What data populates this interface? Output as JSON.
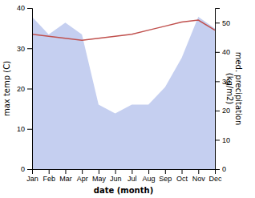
{
  "chart_data": {
    "type": "line",
    "categories": [
      "Jan",
      "Feb",
      "Mar",
      "Apr",
      "May",
      "Jun",
      "Jul",
      "Aug",
      "Sep",
      "Oct",
      "Nov",
      "Dec"
    ],
    "xlabel": "date (month)",
    "ylabel": "max temp (C)",
    "y2label": "med. precipitation\n(kg/m2)",
    "series": [
      {
        "type": "area",
        "axis": "y2",
        "color": "#c5cff0",
        "values": [
          52,
          46,
          50,
          46,
          22,
          19,
          22,
          22,
          28,
          38,
          52,
          48
        ]
      },
      {
        "type": "line",
        "color": "#c0504d",
        "values": [
          33.5,
          33.0,
          32.5,
          32.0,
          32.5,
          33.0,
          33.5,
          34.5,
          35.5,
          36.5,
          37.0,
          34.5
        ]
      }
    ],
    "ylim": [
      0,
      40
    ],
    "yticks": [
      0,
      10,
      20,
      30,
      40
    ],
    "y2lim": [
      0,
      55
    ],
    "y2ticks": [
      0,
      10,
      20,
      30,
      40,
      50
    ]
  }
}
